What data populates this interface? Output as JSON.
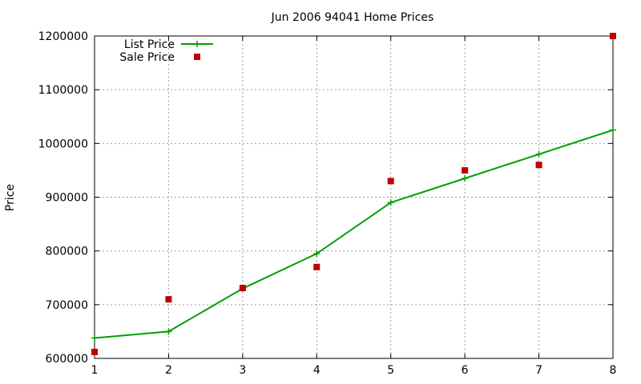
{
  "chart_data": {
    "type": "line",
    "title": "Jun 2006 94041 Home Prices",
    "xlabel": "",
    "ylabel": "Price",
    "xlim": [
      1,
      8
    ],
    "ylim": [
      600000,
      1200000
    ],
    "x_ticks": [
      1,
      2,
      3,
      4,
      5,
      6,
      7,
      8
    ],
    "y_ticks": [
      600000,
      700000,
      800000,
      900000,
      1000000,
      1100000,
      1200000
    ],
    "grid": true,
    "legend_position": "top-left",
    "series": [
      {
        "name": "List Price",
        "style": "line-plus",
        "color": "#00a000",
        "x": [
          1,
          2,
          3,
          4,
          5,
          6,
          7,
          8
        ],
        "y": [
          638000,
          650000,
          730000,
          795000,
          890000,
          935000,
          980000,
          1025000
        ]
      },
      {
        "name": "Sale Price",
        "style": "square",
        "color": "#c00000",
        "x": [
          1,
          2,
          3,
          4,
          5,
          6,
          7,
          8
        ],
        "y": [
          612000,
          710000,
          731000,
          770000,
          930000,
          950000,
          960000,
          1200000
        ]
      }
    ]
  }
}
